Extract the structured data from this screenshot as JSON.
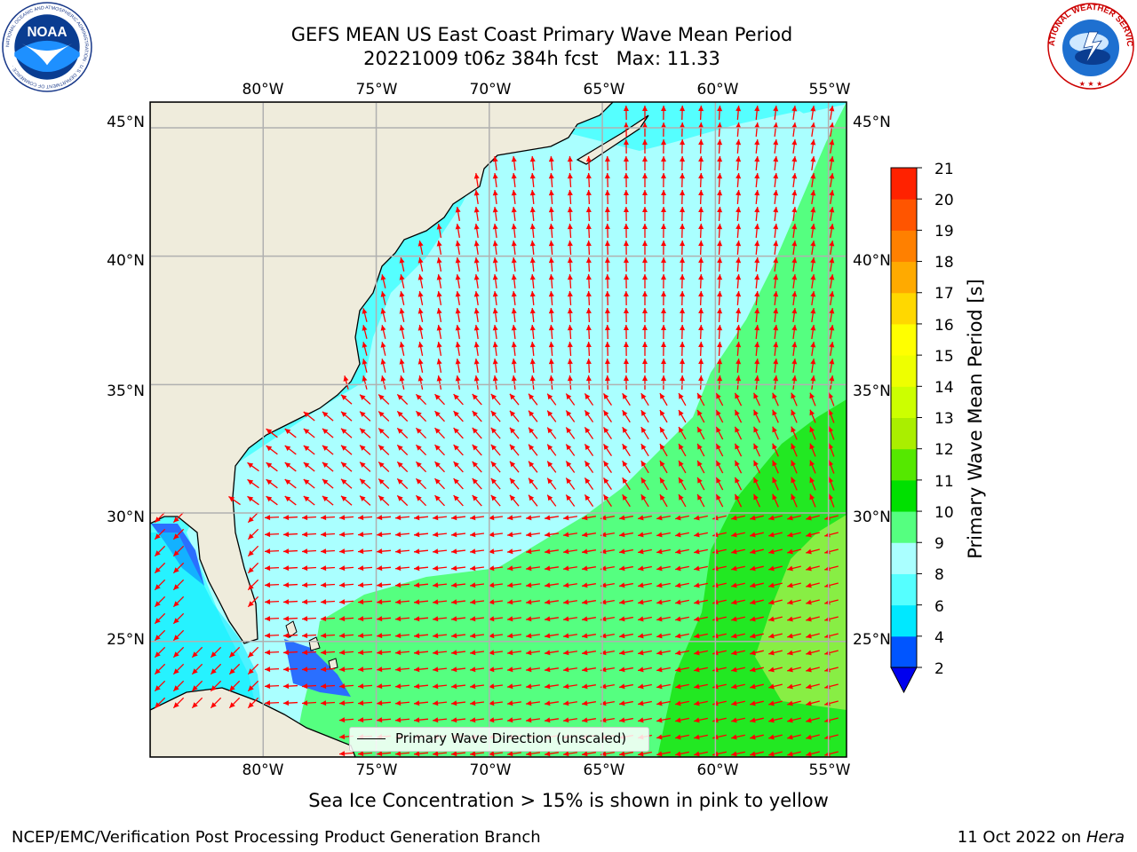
{
  "title": {
    "line1": "GEFS MEAN US East Coast Primary Wave Mean Period",
    "line2": "20221009 t06z 384h fcst   Max: 11.33"
  },
  "map": {
    "lon_ticks": [
      "80°W",
      "75°W",
      "70°W",
      "65°W",
      "60°W",
      "55°W"
    ],
    "lat_ticks": [
      "45°N",
      "40°N",
      "35°N",
      "30°N",
      "25°N"
    ],
    "lon_values": [
      -80,
      -75,
      -70,
      -65,
      -60,
      -55
    ],
    "lat_values": [
      45,
      40,
      35,
      30,
      25
    ],
    "lon_range": [
      -85,
      -54.2
    ],
    "lat_range": [
      20.5,
      46
    ],
    "land_color": "#efecdc",
    "arrow_color": "#ff0000",
    "gridlines": true
  },
  "colorbar": {
    "label": "Primary Wave Mean Period [s]",
    "ticks": [
      "2",
      "4",
      "6",
      "8",
      "9",
      "10",
      "11",
      "12",
      "13",
      "14",
      "15",
      "16",
      "17",
      "18",
      "19",
      "20",
      "21"
    ],
    "levels": [
      2,
      4,
      6,
      8,
      9,
      10,
      11,
      12,
      13,
      14,
      15,
      16,
      17,
      18,
      19,
      20,
      21
    ],
    "colors": [
      "#0055ff",
      "#00e8ff",
      "#55ffff",
      "#aaffff",
      "#55ff80",
      "#00e000",
      "#55e800",
      "#aaee00",
      "#ccff00",
      "#eeff00",
      "#ffff00",
      "#ffd800",
      "#ffaa00",
      "#ff8000",
      "#ff5500",
      "#ff2200",
      "#ff0000"
    ],
    "extend_under_color": "#0000ee"
  },
  "legend": {
    "label": "Primary Wave Direction (unscaled)"
  },
  "logos": {
    "noaa_text": "NOAA",
    "noaa_ring": "NATIONAL OCEANIC AND ATMOSPHERIC ADMINISTRATION · U.S. DEPARTMENT OF COMMERCE ·",
    "nws_ring": "NATIONAL WEATHER SERVICE"
  },
  "note": "Sea Ice Concentration > 15% is shown in pink to yellow",
  "footer": {
    "left": "NCEP/EMC/Verification Post Processing Product Generation Branch",
    "date": "11 Oct 2022 on ",
    "machine": "Hera"
  }
}
